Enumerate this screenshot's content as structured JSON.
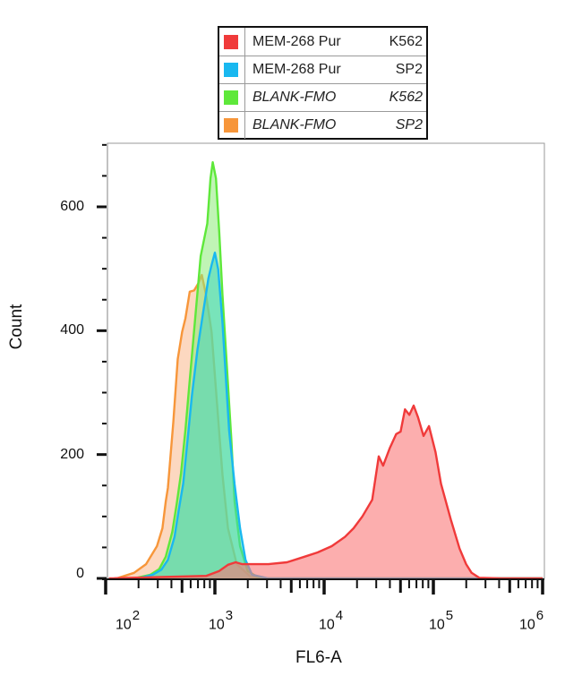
{
  "chart_data": {
    "type": "area",
    "title": "",
    "xlabel": "FL6-A",
    "ylabel": "Count",
    "xscale": "log",
    "xlim": [
      100,
      1000000
    ],
    "ylim": [
      0,
      740
    ],
    "x_ticks": [
      {
        "base": "10",
        "exp": "2"
      },
      {
        "base": "10",
        "exp": "3"
      },
      {
        "base": "10",
        "exp": "4"
      },
      {
        "base": "10",
        "exp": "5"
      },
      {
        "base": "10",
        "exp": "6"
      }
    ],
    "y_ticks": [
      "0",
      "200",
      "400",
      "600"
    ],
    "grid": false,
    "legend_position": "top-center",
    "series": [
      {
        "name": "MEM-268 Pur",
        "cell": "K562",
        "italic": false,
        "color": "#f03a3a",
        "fill": "rgba(250,120,120,0.6)",
        "points_log10x_count": [
          [
            2.03,
            0
          ],
          [
            2.92,
            4
          ],
          [
            3.04,
            12
          ],
          [
            3.12,
            22
          ],
          [
            3.19,
            26
          ],
          [
            3.25,
            23
          ],
          [
            3.37,
            23
          ],
          [
            3.49,
            23
          ],
          [
            3.66,
            26
          ],
          [
            3.82,
            35
          ],
          [
            3.94,
            42
          ],
          [
            4.07,
            52
          ],
          [
            4.19,
            67
          ],
          [
            4.27,
            81
          ],
          [
            4.35,
            100
          ],
          [
            4.44,
            127
          ],
          [
            4.5,
            197
          ],
          [
            4.54,
            182
          ],
          [
            4.6,
            210
          ],
          [
            4.66,
            233
          ],
          [
            4.7,
            237
          ],
          [
            4.74,
            273
          ],
          [
            4.78,
            264
          ],
          [
            4.82,
            279
          ],
          [
            4.86,
            260
          ],
          [
            4.91,
            230
          ],
          [
            4.96,
            246
          ],
          [
            5.02,
            204
          ],
          [
            5.07,
            153
          ],
          [
            5.16,
            95
          ],
          [
            5.24,
            48
          ],
          [
            5.3,
            23
          ],
          [
            5.35,
            9
          ],
          [
            5.42,
            1
          ],
          [
            5.62,
            0
          ],
          [
            6.0,
            0
          ]
        ]
      },
      {
        "name": "MEM-268 Pur",
        "cell": "SP2",
        "italic": false,
        "color": "#19b8f0",
        "fill": "rgba(60,215,190,0.55)",
        "points_log10x_count": [
          [
            2.3,
            0
          ],
          [
            2.43,
            6
          ],
          [
            2.51,
            14
          ],
          [
            2.57,
            30
          ],
          [
            2.63,
            67
          ],
          [
            2.67,
            111
          ],
          [
            2.71,
            153
          ],
          [
            2.75,
            224
          ],
          [
            2.79,
            296
          ],
          [
            2.84,
            369
          ],
          [
            2.89,
            427
          ],
          [
            2.94,
            484
          ],
          [
            2.97,
            506
          ],
          [
            3.0,
            526
          ],
          [
            3.03,
            499
          ],
          [
            3.07,
            412
          ],
          [
            3.1,
            325
          ],
          [
            3.13,
            239
          ],
          [
            3.18,
            152
          ],
          [
            3.23,
            81
          ],
          [
            3.28,
            30
          ],
          [
            3.34,
            6
          ],
          [
            3.49,
            0
          ],
          [
            6.0,
            0
          ]
        ]
      },
      {
        "name": "BLANK-FMO",
        "cell": "K562",
        "italic": true,
        "color": "#5ee83a",
        "fill": "rgba(140,235,120,0.55)",
        "points_log10x_count": [
          [
            2.26,
            0
          ],
          [
            2.41,
            6
          ],
          [
            2.49,
            15
          ],
          [
            2.55,
            35
          ],
          [
            2.61,
            75
          ],
          [
            2.65,
            120
          ],
          [
            2.69,
            170
          ],
          [
            2.73,
            240
          ],
          [
            2.77,
            320
          ],
          [
            2.82,
            420
          ],
          [
            2.87,
            520
          ],
          [
            2.93,
            573
          ],
          [
            2.96,
            646
          ],
          [
            2.98,
            672
          ],
          [
            3.01,
            646
          ],
          [
            3.04,
            558
          ],
          [
            3.07,
            457
          ],
          [
            3.11,
            342
          ],
          [
            3.15,
            226
          ],
          [
            3.18,
            124
          ],
          [
            3.23,
            52
          ],
          [
            3.3,
            12
          ],
          [
            3.41,
            0
          ],
          [
            6.0,
            0
          ]
        ]
      },
      {
        "name": "BLANK-FMO",
        "cell": "SP2",
        "italic": true,
        "color": "#f7963a",
        "fill": "rgba(250,190,150,0.6)",
        "points_log10x_count": [
          [
            2.1,
            0
          ],
          [
            2.26,
            9
          ],
          [
            2.37,
            23
          ],
          [
            2.47,
            52
          ],
          [
            2.52,
            81
          ],
          [
            2.55,
            124
          ],
          [
            2.57,
            146
          ],
          [
            2.62,
            253
          ],
          [
            2.66,
            354
          ],
          [
            2.7,
            398
          ],
          [
            2.73,
            420
          ],
          [
            2.77,
            463
          ],
          [
            2.81,
            465
          ],
          [
            2.85,
            477
          ],
          [
            2.88,
            490
          ],
          [
            2.92,
            457
          ],
          [
            2.97,
            398
          ],
          [
            3.02,
            282
          ],
          [
            3.07,
            167
          ],
          [
            3.12,
            81
          ],
          [
            3.2,
            23
          ],
          [
            3.33,
            2
          ],
          [
            3.5,
            0
          ],
          [
            6.0,
            0
          ]
        ]
      }
    ]
  }
}
